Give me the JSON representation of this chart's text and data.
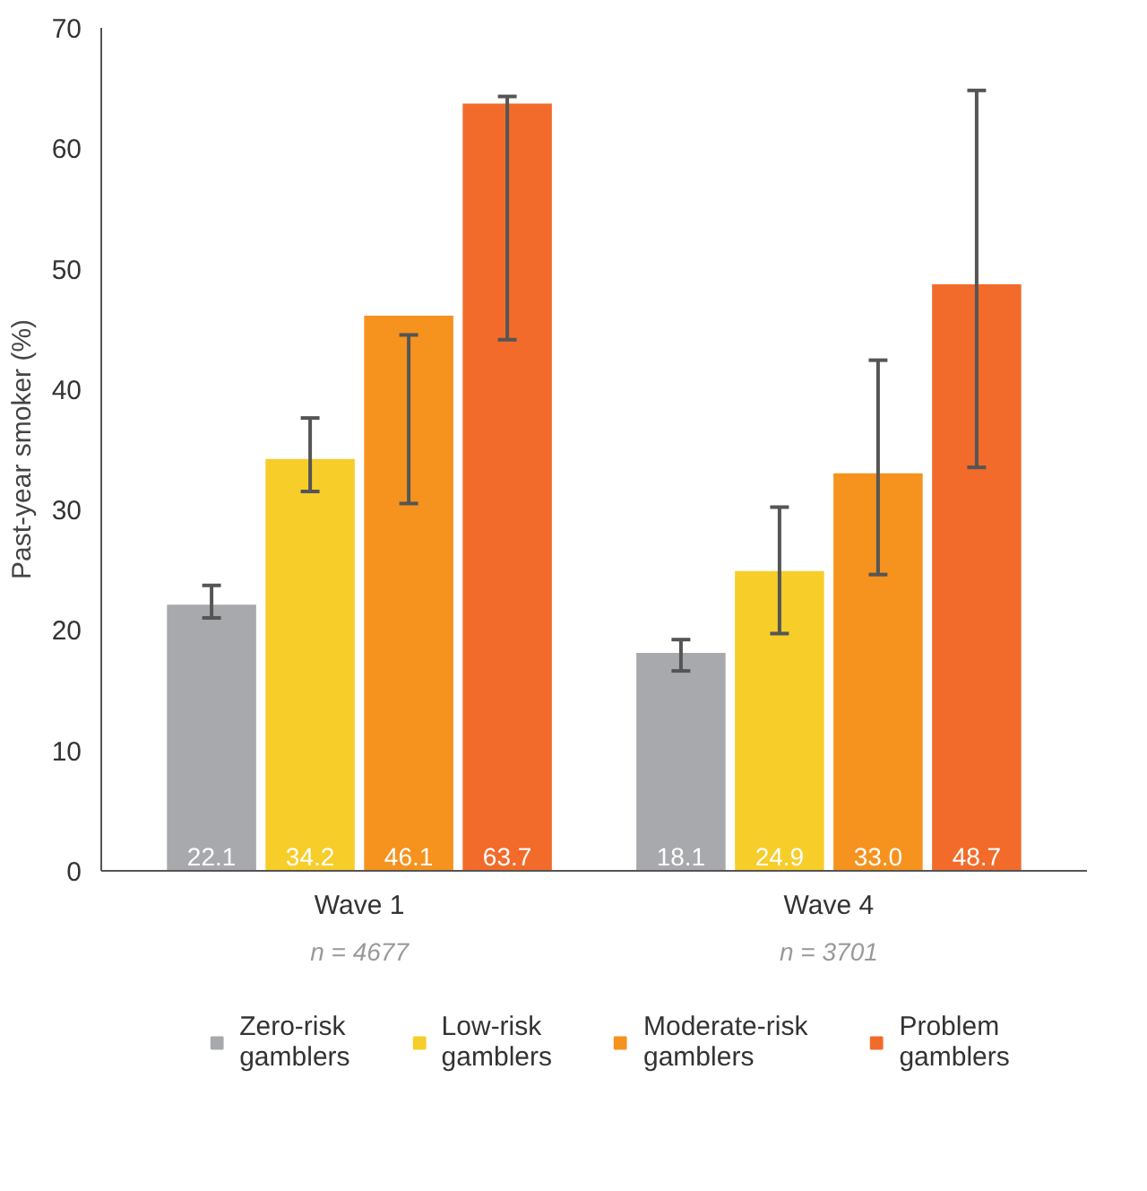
{
  "chart_data": {
    "type": "bar",
    "ylabel": "Past-year smoker (%)",
    "categories": [
      "Wave 1",
      "Wave 4"
    ],
    "series": [
      {
        "name": "Zero-risk\ngamblers",
        "color": "#a7a9ac",
        "values": [
          22.1,
          18.1
        ],
        "value_labels": [
          "22.1",
          "18.1"
        ],
        "errors": [
          [
            21.0,
            23.7
          ],
          [
            16.6,
            19.2
          ]
        ]
      },
      {
        "name": "Low-risk\ngamblers",
        "color": "#f7cd2a",
        "values": [
          34.2,
          24.9
        ],
        "value_labels": [
          "34.2",
          "24.9"
        ],
        "errors": [
          [
            31.5,
            37.6
          ],
          [
            19.7,
            30.2
          ]
        ]
      },
      {
        "name": "Moderate-risk\ngamblers",
        "color": "#f6921e",
        "values": [
          46.1,
          33.0
        ],
        "value_labels": [
          "46.1",
          "33.0"
        ],
        "errors": [
          [
            30.5,
            44.5
          ],
          [
            24.6,
            42.4
          ]
        ]
      },
      {
        "name": "Problem\ngamblers",
        "color": "#f26b2b",
        "values": [
          63.7,
          48.7
        ],
        "value_labels": [
          "63.7",
          "48.7"
        ],
        "errors": [
          [
            44.1,
            64.3
          ],
          [
            33.5,
            64.8
          ]
        ]
      }
    ],
    "annotations": [
      "n = 4677",
      "n = 3701"
    ],
    "ylim": [
      0,
      70
    ],
    "yticks": [
      0,
      10,
      20,
      30,
      40,
      50,
      60,
      70
    ],
    "grid": false,
    "legend": "bottom"
  }
}
